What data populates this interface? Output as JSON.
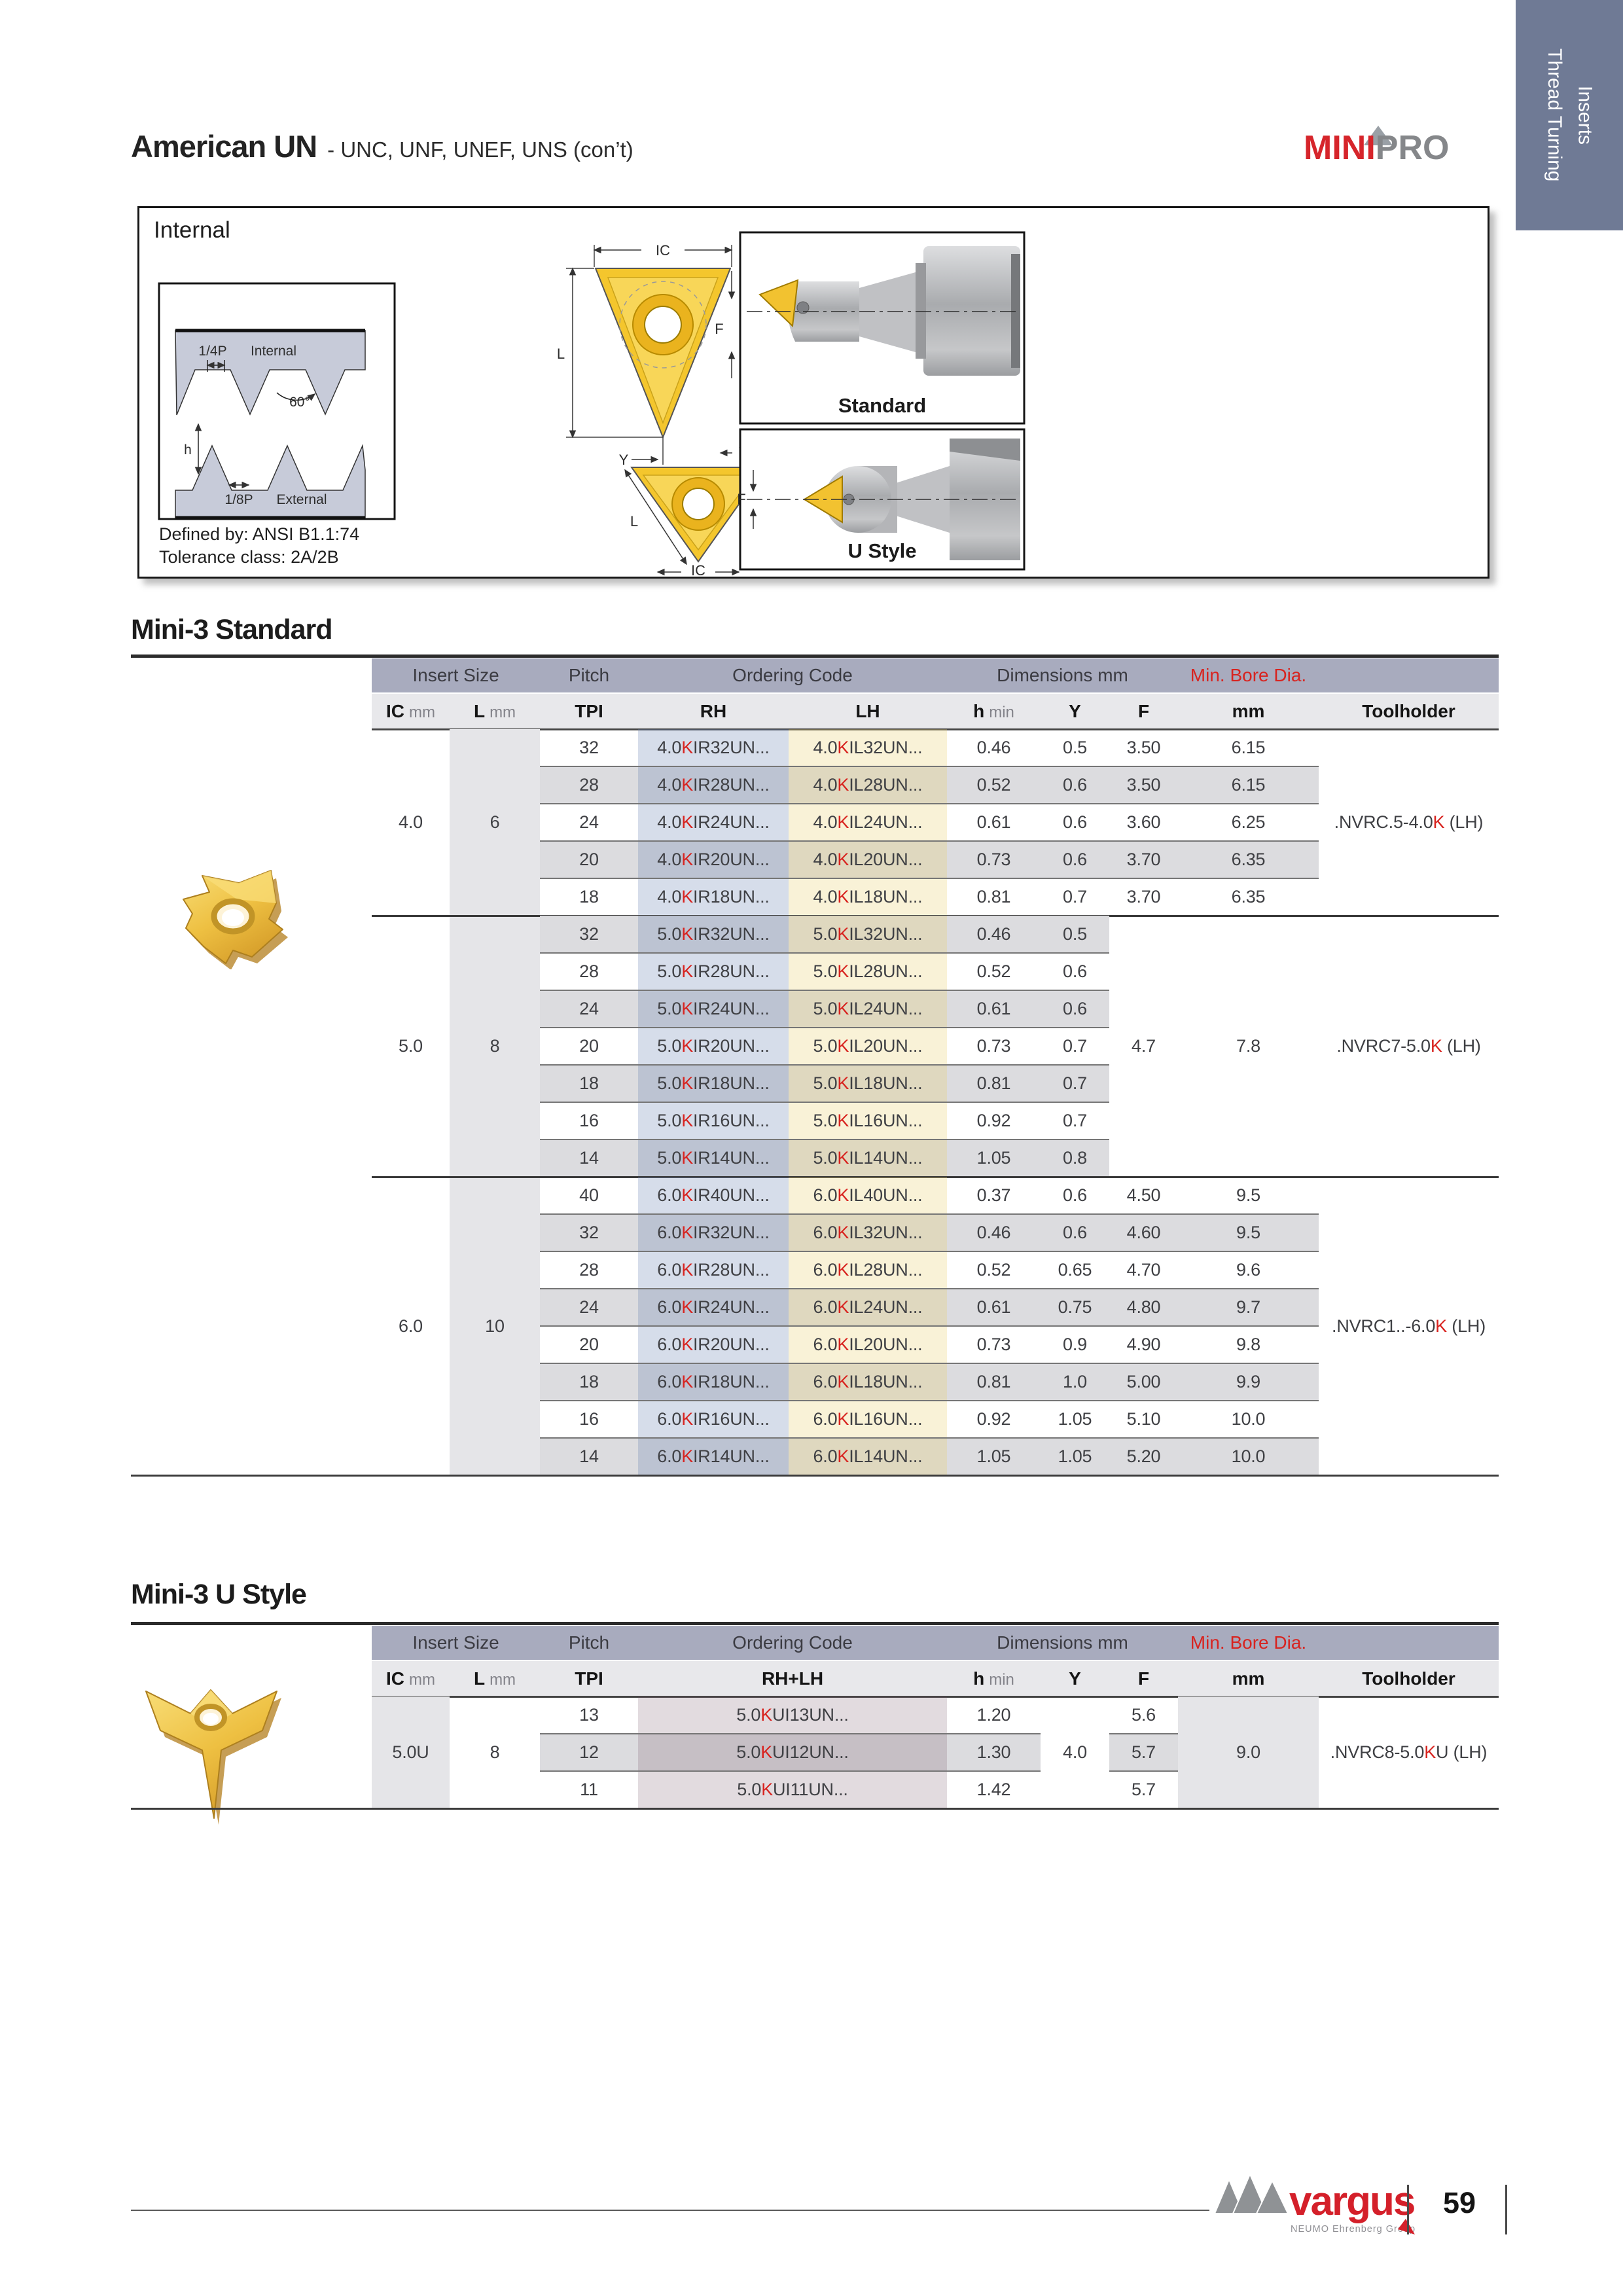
{
  "header": {
    "title": "American UN",
    "subtitle": "- UNC, UNF, UNEF, UNS (con’t)"
  },
  "brand": {
    "mini": "MINI",
    "pro": "PRO"
  },
  "side_tab": {
    "line1": "Thread Turning",
    "line2": "Inserts"
  },
  "colors": {
    "accent_red": "#d8231f",
    "tab_bg": "#6f7a95",
    "band_lavender": "#a8abbe",
    "col_band": "#e8e8eb",
    "stripe_gray": "#dcdcdf",
    "side_band": "#e5e5e8",
    "rh_tint": "rgba(104,130,176,0.27)",
    "lh_tint": "rgba(231,206,108,0.27)",
    "u_tint": "rgba(112,74,94,0.20)",
    "insert_gold": "#eec042"
  },
  "internal_box": {
    "heading": "Internal",
    "labels": {
      "quarter_p": "1/4P",
      "internal": "Internal",
      "angle": "60°",
      "h": "h",
      "eighth_p": "1/8P",
      "external": "External",
      "ic": "IC",
      "l": "L",
      "y": "Y",
      "f": "F",
      "standard": "Standard",
      "ustyle": "U Style"
    },
    "defined_by": "Defined by: ANSI B1.1:74",
    "tolerance": "Tolerance class: 2A/2B"
  },
  "standard_table": {
    "heading": "Mini-3 Standard",
    "group_headers": [
      {
        "label": "Insert Size",
        "span": "ic_l"
      },
      {
        "label": "Pitch",
        "span": "tpi"
      },
      {
        "label": "Ordering Code",
        "span": "rh_lh"
      },
      {
        "label": "Dimensions mm",
        "span": "dims"
      },
      {
        "label": "Min. Bore Dia.",
        "span": "mm",
        "red": true
      }
    ],
    "col_headers": [
      {
        "col": "ic",
        "main": "IC",
        "unit": "mm"
      },
      {
        "col": "l",
        "main": "L",
        "unit": "mm"
      },
      {
        "col": "tpi",
        "main": "TPI"
      },
      {
        "col": "rh",
        "main": "RH"
      },
      {
        "col": "lh",
        "main": "LH"
      },
      {
        "col": "h",
        "main": "h",
        "unit": "min"
      },
      {
        "col": "y",
        "main": "Y"
      },
      {
        "col": "f",
        "main": "F"
      },
      {
        "col": "mm",
        "main": "mm"
      },
      {
        "col": "th",
        "main": "Toolholder"
      }
    ],
    "groups": [
      {
        "ic": "4.0",
        "l": "6",
        "toolholder": {
          "pre": ".NVRC.5-4.0",
          "red": "K",
          "post": " (LH)"
        },
        "rows": [
          {
            "tpi": "32",
            "rh": {
              "pre": "4.0",
              "red": "K",
              "post": "IR32UN..."
            },
            "lh": {
              "pre": "4.0",
              "red": "K",
              "post": "IL32UN..."
            },
            "h": "0.46",
            "y": "0.5",
            "f": "3.50",
            "mm": "6.15"
          },
          {
            "tpi": "28",
            "rh": {
              "pre": "4.0",
              "red": "K",
              "post": "IR28UN..."
            },
            "lh": {
              "pre": "4.0",
              "red": "K",
              "post": "IL28UN..."
            },
            "h": "0.52",
            "y": "0.6",
            "f": "3.50",
            "mm": "6.15"
          },
          {
            "tpi": "24",
            "rh": {
              "pre": "4.0",
              "red": "K",
              "post": "IR24UN..."
            },
            "lh": {
              "pre": "4.0",
              "red": "K",
              "post": "IL24UN..."
            },
            "h": "0.61",
            "y": "0.6",
            "f": "3.60",
            "mm": "6.25"
          },
          {
            "tpi": "20",
            "rh": {
              "pre": "4.0",
              "red": "K",
              "post": "IR20UN..."
            },
            "lh": {
              "pre": "4.0",
              "red": "K",
              "post": "IL20UN..."
            },
            "h": "0.73",
            "y": "0.6",
            "f": "3.70",
            "mm": "6.35"
          },
          {
            "tpi": "18",
            "rh": {
              "pre": "4.0",
              "red": "K",
              "post": "IR18UN..."
            },
            "lh": {
              "pre": "4.0",
              "red": "K",
              "post": "IL18UN..."
            },
            "h": "0.81",
            "y": "0.7",
            "f": "3.70",
            "mm": "6.35"
          }
        ]
      },
      {
        "ic": "5.0",
        "l": "8",
        "f_merged": "4.7",
        "mm_merged": "7.8",
        "toolholder": {
          "pre": ".NVRC7-5.0",
          "red": "K",
          "post": " (LH)"
        },
        "rows": [
          {
            "tpi": "32",
            "rh": {
              "pre": "5.0",
              "red": "K",
              "post": "IR32UN..."
            },
            "lh": {
              "pre": "5.0",
              "red": "K",
              "post": "IL32UN..."
            },
            "h": "0.46",
            "y": "0.5"
          },
          {
            "tpi": "28",
            "rh": {
              "pre": "5.0",
              "red": "K",
              "post": "IR28UN..."
            },
            "lh": {
              "pre": "5.0",
              "red": "K",
              "post": "IL28UN..."
            },
            "h": "0.52",
            "y": "0.6"
          },
          {
            "tpi": "24",
            "rh": {
              "pre": "5.0",
              "red": "K",
              "post": "IR24UN..."
            },
            "lh": {
              "pre": "5.0",
              "red": "K",
              "post": "IL24UN..."
            },
            "h": "0.61",
            "y": "0.6"
          },
          {
            "tpi": "20",
            "rh": {
              "pre": "5.0",
              "red": "K",
              "post": "IR20UN..."
            },
            "lh": {
              "pre": "5.0",
              "red": "K",
              "post": "IL20UN..."
            },
            "h": "0.73",
            "y": "0.7"
          },
          {
            "tpi": "18",
            "rh": {
              "pre": "5.0",
              "red": "K",
              "post": "IR18UN..."
            },
            "lh": {
              "pre": "5.0",
              "red": "K",
              "post": "IL18UN..."
            },
            "h": "0.81",
            "y": "0.7"
          },
          {
            "tpi": "16",
            "rh": {
              "pre": "5.0",
              "red": "K",
              "post": "IR16UN..."
            },
            "lh": {
              "pre": "5.0",
              "red": "K",
              "post": "IL16UN..."
            },
            "h": "0.92",
            "y": "0.7"
          },
          {
            "tpi": "14",
            "rh": {
              "pre": "5.0",
              "red": "K",
              "post": "IR14UN..."
            },
            "lh": {
              "pre": "5.0",
              "red": "K",
              "post": "IL14UN..."
            },
            "h": "1.05",
            "y": "0.8"
          }
        ]
      },
      {
        "ic": "6.0",
        "l": "10",
        "toolholder": {
          "pre": ".NVRC1..-6.0",
          "red": "K",
          "post": " (LH)"
        },
        "rows": [
          {
            "tpi": "40",
            "rh": {
              "pre": "6.0",
              "red": "K",
              "post": "IR40UN..."
            },
            "lh": {
              "pre": "6.0",
              "red": "K",
              "post": "IL40UN..."
            },
            "h": "0.37",
            "y": "0.6",
            "f": "4.50",
            "mm": "9.5"
          },
          {
            "tpi": "32",
            "rh": {
              "pre": "6.0",
              "red": "K",
              "post": "IR32UN..."
            },
            "lh": {
              "pre": "6.0",
              "red": "K",
              "post": "IL32UN..."
            },
            "h": "0.46",
            "y": "0.6",
            "f": "4.60",
            "mm": "9.5"
          },
          {
            "tpi": "28",
            "rh": {
              "pre": "6.0",
              "red": "K",
              "post": "IR28UN..."
            },
            "lh": {
              "pre": "6.0",
              "red": "K",
              "post": "IL28UN..."
            },
            "h": "0.52",
            "y": "0.65",
            "f": "4.70",
            "mm": "9.6"
          },
          {
            "tpi": "24",
            "rh": {
              "pre": "6.0",
              "red": "K",
              "post": "IR24UN..."
            },
            "lh": {
              "pre": "6.0",
              "red": "K",
              "post": "IL24UN..."
            },
            "h": "0.61",
            "y": "0.75",
            "f": "4.80",
            "mm": "9.7"
          },
          {
            "tpi": "20",
            "rh": {
              "pre": "6.0",
              "red": "K",
              "post": "IR20UN..."
            },
            "lh": {
              "pre": "6.0",
              "red": "K",
              "post": "IL20UN..."
            },
            "h": "0.73",
            "y": "0.9",
            "f": "4.90",
            "mm": "9.8"
          },
          {
            "tpi": "18",
            "rh": {
              "pre": "6.0",
              "red": "K",
              "post": "IR18UN..."
            },
            "lh": {
              "pre": "6.0",
              "red": "K",
              "post": "IL18UN..."
            },
            "h": "0.81",
            "y": "1.0",
            "f": "5.00",
            "mm": "9.9"
          },
          {
            "tpi": "16",
            "rh": {
              "pre": "6.0",
              "red": "K",
              "post": "IR16UN..."
            },
            "lh": {
              "pre": "6.0",
              "red": "K",
              "post": "IL16UN..."
            },
            "h": "0.92",
            "y": "1.05",
            "f": "5.10",
            "mm": "10.0"
          },
          {
            "tpi": "14",
            "rh": {
              "pre": "6.0",
              "red": "K",
              "post": "IR14UN..."
            },
            "lh": {
              "pre": "6.0",
              "red": "K",
              "post": "IL14UN..."
            },
            "h": "1.05",
            "y": "1.05",
            "f": "5.20",
            "mm": "10.0"
          }
        ]
      }
    ]
  },
  "ustyle_table": {
    "heading": "Mini-3 U Style",
    "group_headers": [
      {
        "label": "Insert Size",
        "span": "ic_l"
      },
      {
        "label": "Pitch",
        "span": "tpi"
      },
      {
        "label": "Ordering Code",
        "span": "rh_lh"
      },
      {
        "label": "Dimensions mm",
        "span": "dims"
      },
      {
        "label": "Min. Bore Dia.",
        "span": "mm",
        "red": true
      }
    ],
    "col_headers": [
      {
        "col": "ic",
        "main": "IC",
        "unit": "mm"
      },
      {
        "col": "l",
        "main": "L",
        "unit": "mm"
      },
      {
        "col": "tpi",
        "main": "TPI"
      },
      {
        "col": "rhlh",
        "main": "RH+LH"
      },
      {
        "col": "h",
        "main": "h",
        "unit": "min"
      },
      {
        "col": "y",
        "main": "Y"
      },
      {
        "col": "f",
        "main": "F"
      },
      {
        "col": "mm",
        "main": "mm"
      },
      {
        "col": "th",
        "main": "Toolholder"
      }
    ],
    "groups": [
      {
        "ic": "5.0U",
        "l": "8",
        "y_merged": "4.0",
        "mm_merged": "9.0",
        "toolholder": {
          "pre": ".NVRC8-5.0",
          "red": "K",
          "post": "U (LH)"
        },
        "rows": [
          {
            "tpi": "13",
            "code": {
              "pre": "5.0",
              "red": "K",
              "post": "UI13UN..."
            },
            "h": "1.20",
            "f": "5.6"
          },
          {
            "tpi": "12",
            "code": {
              "pre": "5.0",
              "red": "K",
              "post": "UI12UN..."
            },
            "h": "1.30",
            "f": "5.7"
          },
          {
            "tpi": "11",
            "code": {
              "pre": "5.0",
              "red": "K",
              "post": "UI11UN..."
            },
            "h": "1.42",
            "f": "5.7"
          }
        ]
      }
    ]
  },
  "footer": {
    "brand": "vargus",
    "brand_sub": "NEUMO Ehrenberg Group",
    "page": "59"
  }
}
